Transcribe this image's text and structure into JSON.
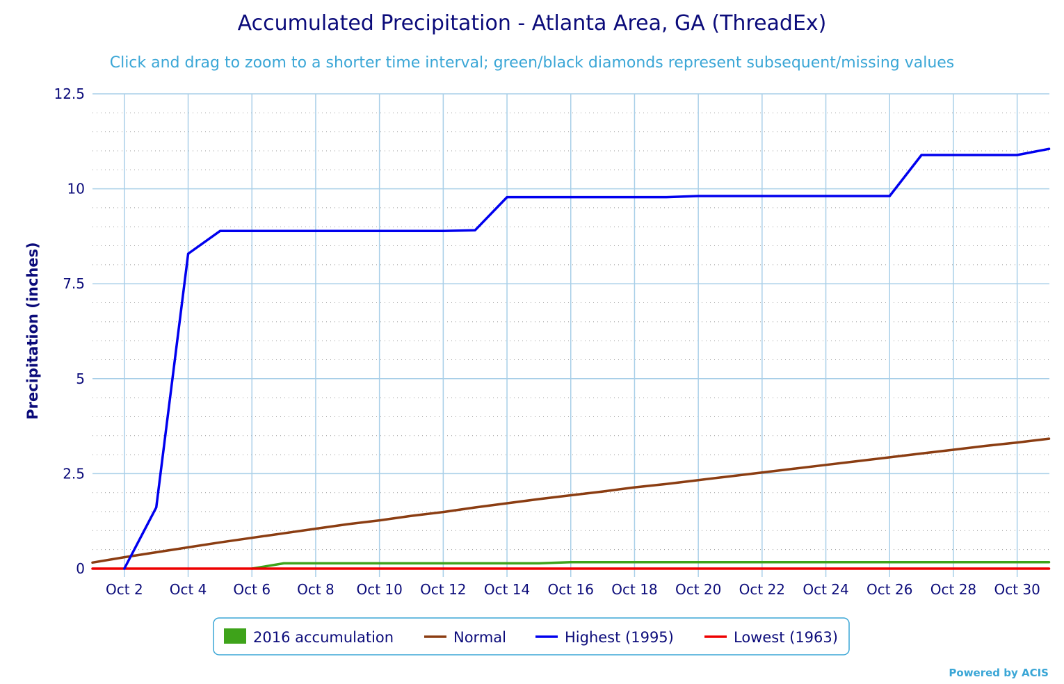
{
  "chart_data": {
    "type": "line",
    "title": "Accumulated Precipitation - Atlanta Area, GA (ThreadEx)",
    "subtitle": "Click and drag to zoom to a shorter time interval; green/black diamonds represent subsequent/missing values",
    "ylabel": "Precipitation (inches)",
    "xlabel": "",
    "ylim": [
      0,
      12.5
    ],
    "xlim": [
      1,
      31
    ],
    "y_ticks": [
      "0",
      "2.5",
      "5",
      "7.5",
      "10",
      "12.5"
    ],
    "x_ticks": [
      "Oct 2",
      "Oct 4",
      "Oct 6",
      "Oct 8",
      "Oct 10",
      "Oct 12",
      "Oct 14",
      "Oct 16",
      "Oct 18",
      "Oct 20",
      "Oct 22",
      "Oct 24",
      "Oct 26",
      "Oct 28",
      "Oct 30"
    ],
    "x_tick_days": [
      2,
      4,
      6,
      8,
      10,
      12,
      14,
      16,
      18,
      20,
      22,
      24,
      26,
      28,
      30
    ],
    "grid": true,
    "legend_position": "bottom",
    "series": [
      {
        "name": "2016 accumulation",
        "color": "#3ea31a",
        "legend_symbol": "box",
        "x": [
          6,
          7,
          8,
          9,
          10,
          11,
          12,
          13,
          14,
          15,
          16,
          17,
          18,
          19,
          20,
          21,
          22,
          23,
          24,
          25,
          26,
          27,
          28,
          29,
          30,
          31
        ],
        "values": [
          0,
          0.14,
          0.14,
          0.14,
          0.14,
          0.14,
          0.14,
          0.14,
          0.14,
          0.14,
          0.17,
          0.17,
          0.17,
          0.17,
          0.17,
          0.17,
          0.17,
          0.17,
          0.17,
          0.17,
          0.17,
          0.17,
          0.17,
          0.17,
          0.17,
          0.17
        ]
      },
      {
        "name": "Normal",
        "color": "#8b3d12",
        "legend_symbol": "line",
        "x": [
          1,
          2,
          3,
          4,
          5,
          6,
          7,
          8,
          9,
          10,
          11,
          12,
          13,
          14,
          15,
          16,
          17,
          18,
          19,
          20,
          21,
          22,
          23,
          24,
          25,
          26,
          27,
          28,
          29,
          30,
          31
        ],
        "values": [
          0.16,
          0.3,
          0.43,
          0.56,
          0.69,
          0.81,
          0.93,
          1.05,
          1.17,
          1.27,
          1.39,
          1.49,
          1.61,
          1.72,
          1.83,
          1.93,
          2.03,
          2.14,
          2.23,
          2.33,
          2.43,
          2.53,
          2.63,
          2.73,
          2.83,
          2.93,
          3.03,
          3.13,
          3.23,
          3.32,
          3.42
        ]
      },
      {
        "name": "Highest (1995)",
        "color": "#0000ee",
        "legend_symbol": "line",
        "x": [
          2,
          3,
          4,
          5,
          6,
          7,
          8,
          9,
          10,
          11,
          12,
          13,
          14,
          15,
          16,
          17,
          18,
          19,
          20,
          21,
          22,
          23,
          24,
          25,
          26,
          27,
          28,
          29,
          30,
          31
        ],
        "values": [
          0,
          1.61,
          8.29,
          8.89,
          8.89,
          8.89,
          8.89,
          8.89,
          8.89,
          8.89,
          8.89,
          8.91,
          9.78,
          9.78,
          9.78,
          9.78,
          9.78,
          9.78,
          9.81,
          9.81,
          9.81,
          9.81,
          9.81,
          9.81,
          9.81,
          10.89,
          10.89,
          10.89,
          10.89,
          11.05
        ]
      },
      {
        "name": "Lowest (1963)",
        "color": "#ee0000",
        "legend_symbol": "line",
        "x": [
          1,
          31
        ],
        "values": [
          0,
          0
        ]
      }
    ]
  },
  "credit": "Powered by ACIS"
}
